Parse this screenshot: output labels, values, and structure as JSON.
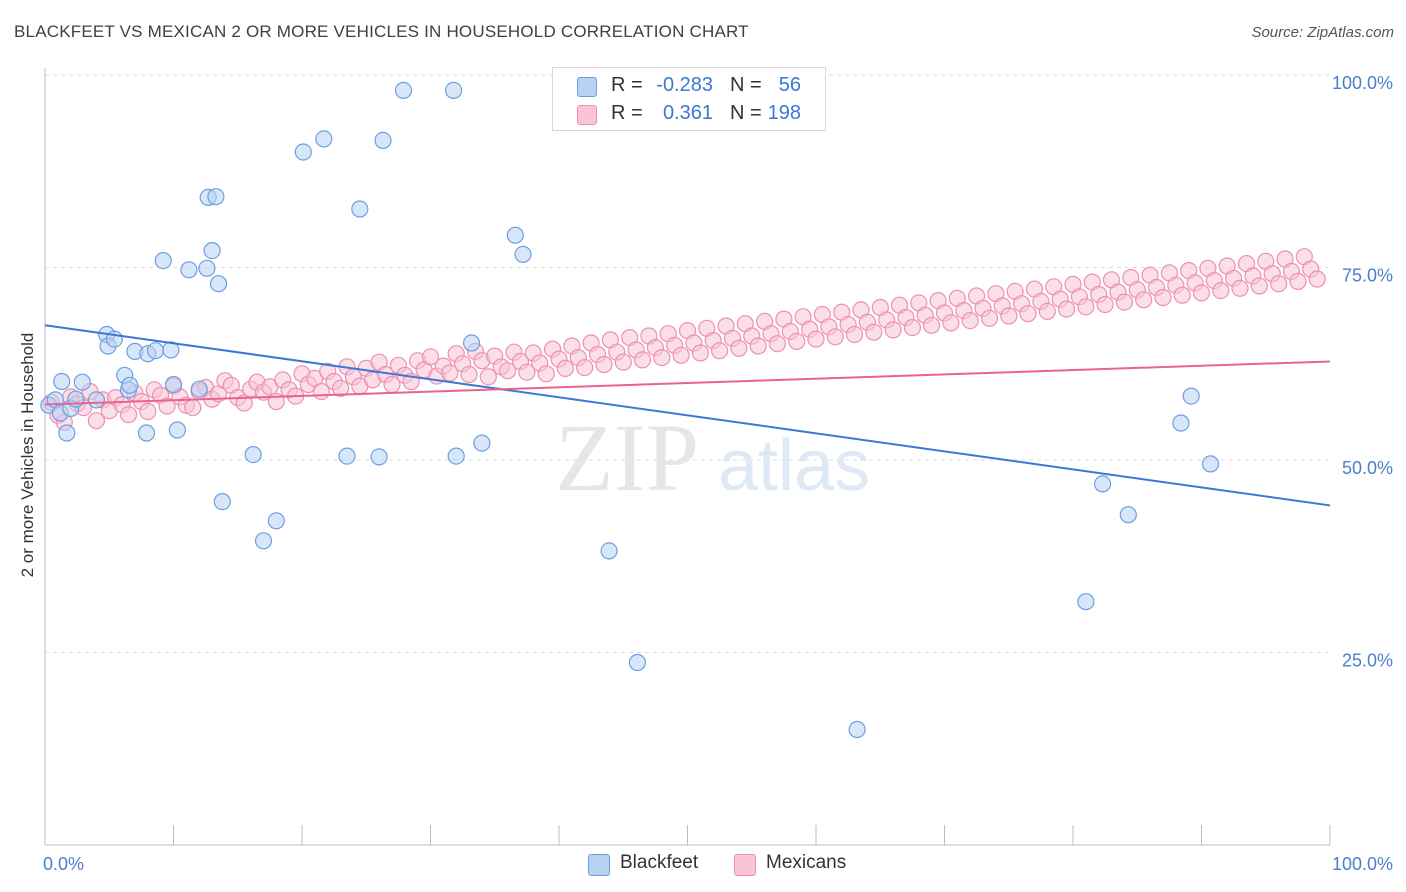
{
  "header": {
    "title": "BLACKFEET VS MEXICAN 2 OR MORE VEHICLES IN HOUSEHOLD CORRELATION CHART",
    "source": "Source: ZipAtlas.com"
  },
  "watermark": {
    "part1": "ZIP",
    "part2": "atlas"
  },
  "legend_top": {
    "rows": [
      {
        "r_label": "R =",
        "r_value": "-0.283",
        "n_label": "N =",
        "n_value": "56",
        "color": "#6d9fe0"
      },
      {
        "r_label": "R =",
        "r_value": "0.361",
        "n_label": "N =",
        "n_value": "198",
        "color": "#f08fb0"
      }
    ]
  },
  "legend_bottom": {
    "items": [
      {
        "label": "Blackfeet",
        "color": "#6d9fe0"
      },
      {
        "label": "Mexicans",
        "color": "#f08fb0"
      }
    ]
  },
  "colors": {
    "blue_fill": "#b8d2f4",
    "blue_stroke": "#6d9fe0",
    "blue_line": "#3a78d4",
    "pink_fill": "#f8c4d6",
    "pink_stroke": "#ee8fb1",
    "pink_line": "#e8638f",
    "tick_label": "#4a7fcc",
    "grid": "#dddddd"
  },
  "chart_data": {
    "type": "scatter",
    "title": "BLACKFEET VS MEXICAN 2 OR MORE VEHICLES IN HOUSEHOLD CORRELATION CHART",
    "xlabel": "",
    "ylabel": "2 or more Vehicles in Household",
    "xlim": [
      0,
      100
    ],
    "ylim": [
      0,
      100
    ],
    "x_tick_labels": [
      "0.0%",
      "100.0%"
    ],
    "y_ticks": [
      25,
      50,
      75,
      100
    ],
    "y_tick_labels": [
      "25.0%",
      "50.0%",
      "75.0%",
      "100.0%"
    ],
    "grid": "horizontal dashed",
    "legend_position": "top-center",
    "series": [
      {
        "name": "Blackfeet",
        "R": -0.283,
        "N": 56,
        "trend": {
          "x": [
            0,
            100
          ],
          "y": [
            67.5,
            44.1
          ]
        },
        "points": [
          [
            0.3,
            57.1
          ],
          [
            0.8,
            57.8
          ],
          [
            1.2,
            56.1
          ],
          [
            1.3,
            60.2
          ],
          [
            1.7,
            53.5
          ],
          [
            2.0,
            56.7
          ],
          [
            2.4,
            57.9
          ],
          [
            2.9,
            60.1
          ],
          [
            4.0,
            57.8
          ],
          [
            4.8,
            66.3
          ],
          [
            4.9,
            64.8
          ],
          [
            5.4,
            65.7
          ],
          [
            6.2,
            61.0
          ],
          [
            6.5,
            59.1
          ],
          [
            6.6,
            59.7
          ],
          [
            7.0,
            64.1
          ],
          [
            7.9,
            53.5
          ],
          [
            8.0,
            63.8
          ],
          [
            8.6,
            64.2
          ],
          [
            9.2,
            75.9
          ],
          [
            9.8,
            64.3
          ],
          [
            10.0,
            59.8
          ],
          [
            10.3,
            53.9
          ],
          [
            11.2,
            74.7
          ],
          [
            12.0,
            59.2
          ],
          [
            12.6,
            74.9
          ],
          [
            12.7,
            84.1
          ],
          [
            13.0,
            77.2
          ],
          [
            13.3,
            84.2
          ],
          [
            13.5,
            72.9
          ],
          [
            13.8,
            44.6
          ],
          [
            16.2,
            50.7
          ],
          [
            17.0,
            39.5
          ],
          [
            18.0,
            42.1
          ],
          [
            20.1,
            90.0
          ],
          [
            21.7,
            91.7
          ],
          [
            23.5,
            50.5
          ],
          [
            24.5,
            82.6
          ],
          [
            26.0,
            50.4
          ],
          [
            26.3,
            91.5
          ],
          [
            27.9,
            98.0
          ],
          [
            31.8,
            98.0
          ],
          [
            32.0,
            50.5
          ],
          [
            33.2,
            65.2
          ],
          [
            34.0,
            52.2
          ],
          [
            36.6,
            79.2
          ],
          [
            37.2,
            76.7
          ],
          [
            43.9,
            38.2
          ],
          [
            46.1,
            23.7
          ],
          [
            63.2,
            15.0
          ],
          [
            81.0,
            31.6
          ],
          [
            82.3,
            46.9
          ],
          [
            84.3,
            42.9
          ],
          [
            88.4,
            54.8
          ],
          [
            89.2,
            58.3
          ],
          [
            90.7,
            49.5
          ]
        ]
      },
      {
        "name": "Mexicans",
        "R": 0.361,
        "N": 198,
        "trend": {
          "x": [
            0,
            100
          ],
          "y": [
            57.2,
            62.8
          ]
        },
        "points": [
          [
            0.5,
            57.5
          ],
          [
            1.0,
            55.8
          ],
          [
            1.5,
            54.9
          ],
          [
            2.0,
            58.2
          ],
          [
            2.5,
            57.3
          ],
          [
            3.0,
            56.8
          ],
          [
            3.5,
            58.9
          ],
          [
            4.0,
            55.1
          ],
          [
            4.5,
            57.8
          ],
          [
            5.0,
            56.4
          ],
          [
            5.5,
            58.1
          ],
          [
            6.0,
            57.2
          ],
          [
            6.5,
            55.9
          ],
          [
            7.0,
            58.7
          ],
          [
            7.5,
            57.6
          ],
          [
            8.0,
            56.3
          ],
          [
            8.5,
            59.1
          ],
          [
            9.0,
            58.4
          ],
          [
            9.5,
            57.0
          ],
          [
            10.0,
            59.6
          ],
          [
            10.5,
            58.2
          ],
          [
            11.0,
            57.1
          ],
          [
            11.5,
            56.8
          ],
          [
            12.0,
            58.9
          ],
          [
            12.5,
            59.4
          ],
          [
            13.0,
            57.9
          ],
          [
            13.5,
            58.6
          ],
          [
            14.0,
            60.3
          ],
          [
            14.5,
            59.7
          ],
          [
            15.0,
            58.1
          ],
          [
            15.5,
            57.4
          ],
          [
            16.0,
            59.2
          ],
          [
            16.5,
            60.1
          ],
          [
            17.0,
            58.8
          ],
          [
            17.5,
            59.5
          ],
          [
            18.0,
            57.6
          ],
          [
            18.5,
            60.4
          ],
          [
            19.0,
            59.1
          ],
          [
            19.5,
            58.3
          ],
          [
            20.0,
            61.2
          ],
          [
            20.5,
            59.8
          ],
          [
            21.0,
            60.6
          ],
          [
            21.5,
            58.9
          ],
          [
            22.0,
            61.5
          ],
          [
            22.5,
            60.2
          ],
          [
            23.0,
            59.3
          ],
          [
            23.5,
            62.1
          ],
          [
            24.0,
            60.8
          ],
          [
            24.5,
            59.6
          ],
          [
            25.0,
            61.9
          ],
          [
            25.5,
            60.4
          ],
          [
            26.0,
            62.7
          ],
          [
            26.5,
            61.1
          ],
          [
            27.0,
            59.8
          ],
          [
            27.5,
            62.3
          ],
          [
            28.0,
            61.0
          ],
          [
            28.5,
            60.2
          ],
          [
            29.0,
            62.9
          ],
          [
            29.5,
            61.7
          ],
          [
            30.0,
            63.4
          ],
          [
            30.5,
            60.9
          ],
          [
            31.0,
            62.2
          ],
          [
            31.5,
            61.3
          ],
          [
            32.0,
            63.8
          ],
          [
            32.5,
            62.5
          ],
          [
            33.0,
            61.1
          ],
          [
            33.5,
            64.1
          ],
          [
            34.0,
            62.9
          ],
          [
            34.5,
            60.8
          ],
          [
            35.0,
            63.5
          ],
          [
            35.5,
            62.1
          ],
          [
            36.0,
            61.6
          ],
          [
            36.5,
            64.0
          ],
          [
            37.0,
            62.8
          ],
          [
            37.5,
            61.4
          ],
          [
            38.0,
            63.9
          ],
          [
            38.5,
            62.6
          ],
          [
            39.0,
            61.2
          ],
          [
            39.5,
            64.4
          ],
          [
            40.0,
            63.1
          ],
          [
            40.5,
            61.9
          ],
          [
            41.0,
            64.8
          ],
          [
            41.5,
            63.3
          ],
          [
            42.0,
            62.0
          ],
          [
            42.5,
            65.2
          ],
          [
            43.0,
            63.7
          ],
          [
            43.5,
            62.4
          ],
          [
            44.0,
            65.6
          ],
          [
            44.5,
            64.0
          ],
          [
            45.0,
            62.7
          ],
          [
            45.5,
            65.9
          ],
          [
            46.0,
            64.3
          ],
          [
            46.5,
            63.0
          ],
          [
            47.0,
            66.1
          ],
          [
            47.5,
            64.6
          ],
          [
            48.0,
            63.3
          ],
          [
            48.5,
            66.4
          ],
          [
            49.0,
            64.9
          ],
          [
            49.5,
            63.6
          ],
          [
            50.0,
            66.8
          ],
          [
            50.5,
            65.2
          ],
          [
            51.0,
            63.9
          ],
          [
            51.5,
            67.1
          ],
          [
            52.0,
            65.5
          ],
          [
            52.5,
            64.2
          ],
          [
            53.0,
            67.4
          ],
          [
            53.5,
            65.8
          ],
          [
            54.0,
            64.5
          ],
          [
            54.5,
            67.7
          ],
          [
            55.0,
            66.1
          ],
          [
            55.5,
            64.8
          ],
          [
            56.0,
            68.0
          ],
          [
            56.5,
            66.4
          ],
          [
            57.0,
            65.1
          ],
          [
            57.5,
            68.3
          ],
          [
            58.0,
            66.7
          ],
          [
            58.5,
            65.4
          ],
          [
            59.0,
            68.6
          ],
          [
            59.5,
            67.0
          ],
          [
            60.0,
            65.7
          ],
          [
            60.5,
            68.9
          ],
          [
            61.0,
            67.3
          ],
          [
            61.5,
            66.0
          ],
          [
            62.0,
            69.2
          ],
          [
            62.5,
            67.6
          ],
          [
            63.0,
            66.3
          ],
          [
            63.5,
            69.5
          ],
          [
            64.0,
            67.9
          ],
          [
            64.5,
            66.6
          ],
          [
            65.0,
            69.8
          ],
          [
            65.5,
            68.2
          ],
          [
            66.0,
            66.9
          ],
          [
            66.5,
            70.1
          ],
          [
            67.0,
            68.5
          ],
          [
            67.5,
            67.2
          ],
          [
            68.0,
            70.4
          ],
          [
            68.5,
            68.8
          ],
          [
            69.0,
            67.5
          ],
          [
            69.5,
            70.7
          ],
          [
            70.0,
            69.1
          ],
          [
            70.5,
            67.8
          ],
          [
            71.0,
            71.0
          ],
          [
            71.5,
            69.4
          ],
          [
            72.0,
            68.1
          ],
          [
            72.5,
            71.3
          ],
          [
            73.0,
            69.7
          ],
          [
            73.5,
            68.4
          ],
          [
            74.0,
            71.6
          ],
          [
            74.5,
            70.0
          ],
          [
            75.0,
            68.7
          ],
          [
            75.5,
            71.9
          ],
          [
            76.0,
            70.3
          ],
          [
            76.5,
            69.0
          ],
          [
            77.0,
            72.2
          ],
          [
            77.5,
            70.6
          ],
          [
            78.0,
            69.3
          ],
          [
            78.5,
            72.5
          ],
          [
            79.0,
            70.9
          ],
          [
            79.5,
            69.6
          ],
          [
            80.0,
            72.8
          ],
          [
            80.5,
            71.2
          ],
          [
            81.0,
            69.9
          ],
          [
            81.5,
            73.1
          ],
          [
            82.0,
            71.5
          ],
          [
            82.5,
            70.2
          ],
          [
            83.0,
            73.4
          ],
          [
            83.5,
            71.8
          ],
          [
            84.0,
            70.5
          ],
          [
            84.5,
            73.7
          ],
          [
            85.0,
            72.1
          ],
          [
            85.5,
            70.8
          ],
          [
            86.0,
            74.0
          ],
          [
            86.5,
            72.4
          ],
          [
            87.0,
            71.1
          ],
          [
            87.5,
            74.3
          ],
          [
            88.0,
            72.7
          ],
          [
            88.5,
            71.4
          ],
          [
            89.0,
            74.6
          ],
          [
            89.5,
            73.0
          ],
          [
            90.0,
            71.7
          ],
          [
            90.5,
            74.9
          ],
          [
            91.0,
            73.3
          ],
          [
            91.5,
            72.0
          ],
          [
            92.0,
            75.2
          ],
          [
            92.5,
            73.6
          ],
          [
            93.0,
            72.3
          ],
          [
            93.5,
            75.5
          ],
          [
            94.0,
            73.9
          ],
          [
            94.5,
            72.6
          ],
          [
            95.0,
            75.8
          ],
          [
            95.5,
            74.2
          ],
          [
            96.0,
            72.9
          ],
          [
            96.5,
            76.1
          ],
          [
            97.0,
            74.5
          ],
          [
            97.5,
            73.2
          ],
          [
            98.0,
            76.4
          ],
          [
            98.5,
            74.8
          ],
          [
            99.0,
            73.5
          ]
        ]
      }
    ]
  }
}
